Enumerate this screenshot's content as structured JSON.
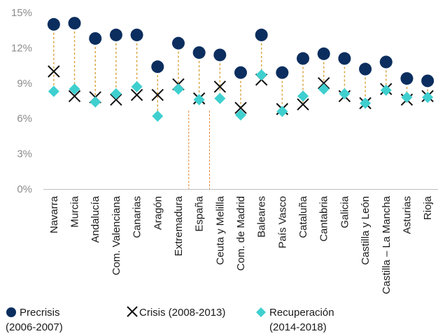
{
  "chart_data": {
    "type": "scatter",
    "categories": [
      "Navarra",
      "Murcia",
      "Andalucía",
      "Com. Valenciana",
      "Canarias",
      "Aragón",
      "Extremadura",
      "España",
      "Ceuta y Melilla",
      "Com. de Madrid",
      "Baleares",
      "País Vasco",
      "Cataluña",
      "Cantabria",
      "Galicia",
      "Castilla y León",
      "Castilla – La Mancha",
      "Asturias",
      "Rioja"
    ],
    "series": [
      {
        "name": "Precrisis (2006-2007)",
        "marker": "circle",
        "color": "#0b2e5f",
        "values": [
          14.0,
          14.1,
          12.8,
          13.1,
          13.1,
          10.4,
          12.4,
          11.6,
          11.4,
          9.9,
          13.1,
          9.9,
          11.1,
          11.5,
          11.1,
          10.2,
          10.8,
          9.4,
          9.2
        ]
      },
      {
        "name": "Crisis (2008-2013)",
        "marker": "x",
        "color": "#111111",
        "values": [
          10.0,
          7.9,
          7.8,
          7.6,
          8.0,
          8.0,
          8.9,
          7.7,
          8.7,
          6.9,
          9.3,
          6.8,
          7.2,
          9.0,
          7.9,
          7.3,
          8.5,
          7.6,
          7.9
        ]
      },
      {
        "name": "Recuperación (2014-2018)",
        "marker": "diamond",
        "color": "#3fcfcf",
        "values": [
          8.3,
          8.5,
          7.4,
          8.1,
          8.7,
          6.2,
          8.5,
          7.6,
          7.7,
          6.3,
          9.7,
          6.6,
          7.9,
          8.5,
          8.1,
          7.3,
          8.4,
          7.8,
          7.8
        ]
      }
    ],
    "yticks": [
      "0%",
      "3%",
      "6%",
      "9%",
      "12%",
      "15%"
    ],
    "ylim": [
      0,
      15
    ],
    "highlight_category": "España",
    "connector_color": "#d9a640",
    "separator_color": "#e8873a",
    "grid": false,
    "legend_position": "bottom"
  },
  "legend": [
    {
      "line1": "Precrisis",
      "line2": "(2006-2007)"
    },
    {
      "line1": "Crisis (2008-2013)",
      "line2": ""
    },
    {
      "line1": "Recuperación",
      "line2": "(2014-2018)"
    }
  ]
}
